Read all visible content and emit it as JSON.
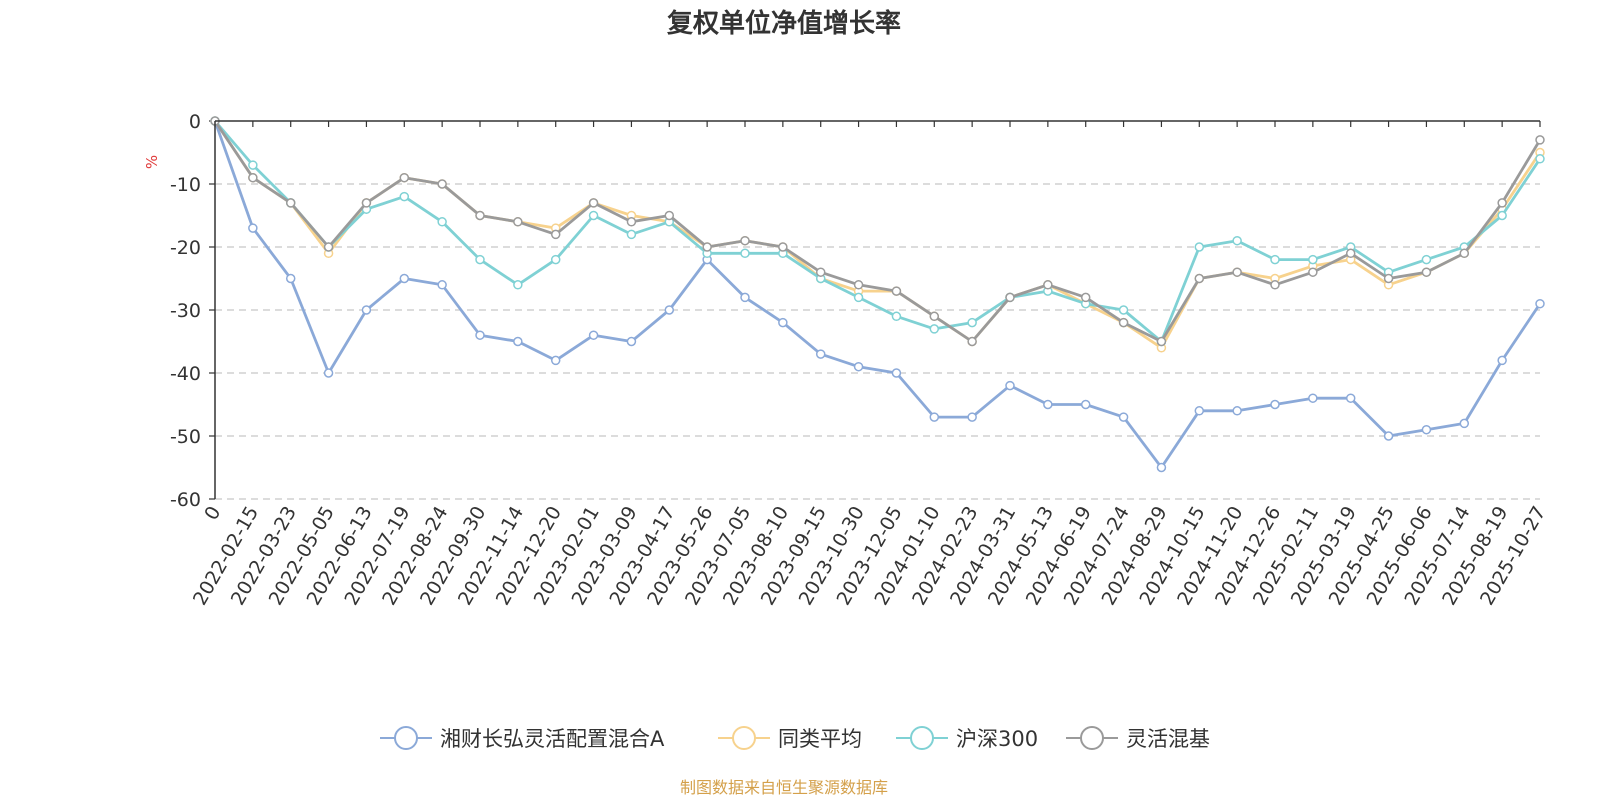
{
  "chart_data": {
    "type": "line",
    "title": "复权单位净值增长率",
    "ylabel": "%",
    "ylim": [
      -60,
      0
    ],
    "yticks": [
      "0",
      "-10",
      "-20",
      "-30",
      "-40",
      "-50",
      "-60"
    ],
    "yticks_values": [
      0,
      -10,
      -20,
      -30,
      -40,
      -50,
      -60
    ],
    "grid": "dashed horizontal",
    "legend_position": "bottom-center",
    "source": "制图数据来自恒生聚源数据库",
    "categories": [
      "0",
      "2022-02-15",
      "2022-03-23",
      "2022-05-05",
      "2022-06-13",
      "2022-07-19",
      "2022-08-24",
      "2022-09-30",
      "2022-11-14",
      "2022-12-20",
      "2023-02-01",
      "2023-03-09",
      "2023-04-17",
      "2023-05-26",
      "2023-07-05",
      "2023-08-10",
      "2023-09-15",
      "2023-10-30",
      "2023-12-05",
      "2024-01-10",
      "2024-02-23",
      "2024-03-31",
      "2024-05-13",
      "2024-06-19",
      "2024-07-24",
      "2024-08-29",
      "2024-10-15",
      "2024-11-20",
      "2024-12-26",
      "2025-02-11",
      "2025-03-19",
      "2025-04-25",
      "2025-06-06",
      "2025-07-14",
      "2025-08-19",
      "2025-10-27"
    ],
    "series": [
      {
        "name": "湘财长弘灵活配置混合A",
        "color": "#8ba9d8",
        "values": [
          0,
          -17,
          -25,
          -40,
          -30,
          -25,
          -26,
          -34,
          -35,
          -38,
          -34,
          -35,
          -30,
          -22,
          -28,
          -32,
          -37,
          -39,
          -40,
          -47,
          -47,
          -42,
          -45,
          -45,
          -47,
          -55,
          -46,
          -46,
          -45,
          -44,
          -44,
          -50,
          -49,
          -48,
          -38,
          -29
        ]
      },
      {
        "name": "同类平均",
        "color": "#f7d28d",
        "values": [
          0,
          -9,
          -13,
          -21,
          -13,
          -9,
          -10,
          -15,
          -16,
          -17,
          -13,
          -15,
          -16,
          -20,
          -19,
          -20,
          -25,
          -27,
          -27,
          -31,
          -35,
          -28,
          -26,
          -29,
          -32,
          -36,
          -25,
          -24,
          -25,
          -23,
          -22,
          -26,
          -24,
          -21,
          -14,
          -5
        ]
      },
      {
        "name": "沪深300",
        "color": "#7fd1d4",
        "values": [
          0,
          -7,
          -13,
          -20,
          -14,
          -12,
          -16,
          -22,
          -26,
          -22,
          -15,
          -18,
          -16,
          -21,
          -21,
          -21,
          -25,
          -28,
          -31,
          -33,
          -32,
          -28,
          -27,
          -29,
          -30,
          -35,
          -20,
          -19,
          -22,
          -22,
          -20,
          -24,
          -22,
          -20,
          -15,
          -6
        ]
      },
      {
        "name": "灵活混基",
        "color": "#9a9a9a",
        "values": [
          0,
          -9,
          -13,
          -20,
          -13,
          -9,
          -10,
          -15,
          -16,
          -18,
          -13,
          -16,
          -15,
          -20,
          -19,
          -20,
          -24,
          -26,
          -27,
          -31,
          -35,
          -28,
          -26,
          -28,
          -32,
          -35,
          -25,
          -24,
          -26,
          -24,
          -21,
          -25,
          -24,
          -21,
          -13,
          -3
        ]
      }
    ]
  }
}
